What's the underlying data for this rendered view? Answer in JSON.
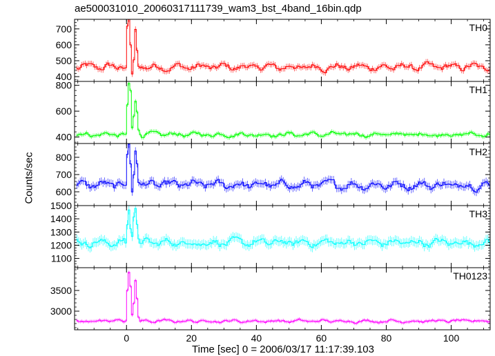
{
  "chart_data": {
    "type": "line",
    "title": "ae500031010_20060317111739_wam3_bst_4band_16bin.qdp",
    "xlabel": "Time [sec] 0 = 2006/03/17 11:17:39.103",
    "ylabel": "Counts/sec",
    "xlim": [
      -16,
      112
    ],
    "x_ticks": [
      0,
      20,
      40,
      60,
      80,
      100
    ],
    "bin_seconds": 0.5,
    "panels": [
      {
        "name": "TH0",
        "color": "#ff0000",
        "ylim": [
          370,
          760
        ],
        "y_ticks": [
          400,
          500,
          600,
          700
        ],
        "baseline": 460,
        "noise": 35,
        "error": 18,
        "burst": [
          [
            -0.5,
            460
          ],
          [
            0,
            720
          ],
          [
            0.5,
            760
          ],
          [
            1,
            600
          ],
          [
            1.5,
            420
          ],
          [
            2,
            500
          ],
          [
            2.5,
            700
          ],
          [
            3,
            560
          ],
          [
            3.5,
            470
          ],
          [
            4,
            460
          ]
        ]
      },
      {
        "name": "TH1",
        "color": "#00ff00",
        "ylim": [
          350,
          830
        ],
        "y_ticks": [
          400,
          600,
          800
        ],
        "baseline": 420,
        "noise": 28,
        "error": 16,
        "burst": [
          [
            -0.5,
            420
          ],
          [
            0,
            650
          ],
          [
            0.5,
            810
          ],
          [
            1,
            760
          ],
          [
            1.5,
            470
          ],
          [
            2,
            560
          ],
          [
            2.5,
            680
          ],
          [
            3,
            600
          ],
          [
            3.5,
            450
          ],
          [
            4,
            420
          ]
        ]
      },
      {
        "name": "TH2",
        "color": "#0000ff",
        "ylim": [
          520,
          880
        ],
        "y_ticks": [
          600,
          700,
          800
        ],
        "baseline": 640,
        "noise": 38,
        "error": 22,
        "burst": [
          [
            -0.5,
            640
          ],
          [
            0,
            820
          ],
          [
            0.5,
            880
          ],
          [
            1,
            760
          ],
          [
            1.5,
            600
          ],
          [
            2,
            700
          ],
          [
            2.5,
            840
          ],
          [
            3,
            760
          ],
          [
            3.5,
            660
          ],
          [
            4,
            640
          ]
        ]
      },
      {
        "name": "TH3",
        "color": "#00ffff",
        "ylim": [
          1030,
          1500
        ],
        "y_ticks": [
          1100,
          1200,
          1300,
          1400,
          1500
        ],
        "baseline": 1220,
        "noise": 45,
        "error": 35,
        "burst": [
          [
            -0.5,
            1220
          ],
          [
            0,
            1360
          ],
          [
            0.5,
            1470
          ],
          [
            1,
            1330
          ],
          [
            1.5,
            1260
          ],
          [
            2,
            1420
          ],
          [
            2.5,
            1480
          ],
          [
            3,
            1350
          ],
          [
            3.5,
            1240
          ],
          [
            4,
            1220
          ]
        ]
      },
      {
        "name": "TH0123",
        "color": "#ff00ff",
        "ylim": [
          2550,
          4050
        ],
        "y_ticks": [
          3000,
          3500
        ],
        "baseline": 2760,
        "noise": 55,
        "error": 40,
        "burst": [
          [
            -0.5,
            2760
          ],
          [
            0,
            3500
          ],
          [
            0.5,
            3950
          ],
          [
            1,
            3600
          ],
          [
            1.5,
            2900
          ],
          [
            2,
            3200
          ],
          [
            2.5,
            3750
          ],
          [
            3,
            3300
          ],
          [
            3.5,
            2850
          ],
          [
            4,
            2760
          ]
        ]
      }
    ]
  }
}
